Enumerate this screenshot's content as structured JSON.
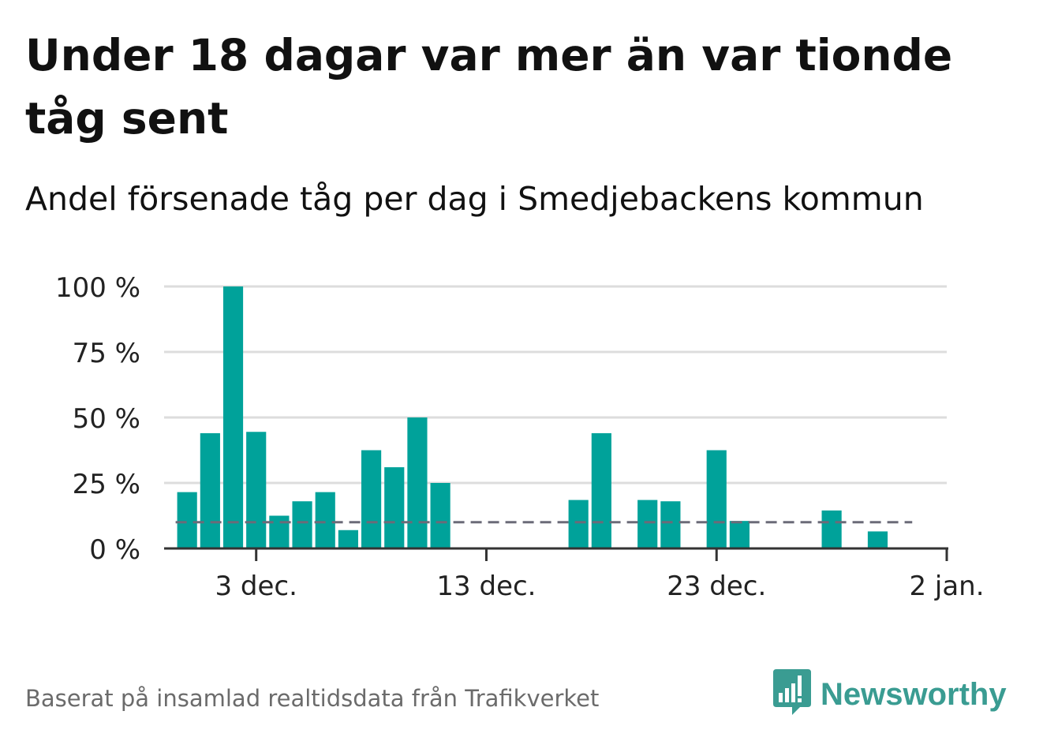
{
  "title": "Under 18 dagar var mer än var tionde tåg sent",
  "subtitle": "Andel försenade tåg per dag i Smedjebackens kommun",
  "footer": "Baserat på insamlad realtidsdata från Trafikverket",
  "brand": {
    "name": "Newsworthy",
    "icon": "newsworthy-logo-icon",
    "color": "#3a9c92"
  },
  "colors": {
    "bar": "#00a29a",
    "reference": "#6b6b78",
    "grid": "#dddddd",
    "axis": "#333333"
  },
  "chart_data": {
    "type": "bar",
    "x": [
      "2023-11-30",
      "2023-12-01",
      "2023-12-02",
      "2023-12-03",
      "2023-12-04",
      "2023-12-05",
      "2023-12-06",
      "2023-12-07",
      "2023-12-08",
      "2023-12-09",
      "2023-12-10",
      "2023-12-11",
      "2023-12-12",
      "2023-12-13",
      "2023-12-14",
      "2023-12-15",
      "2023-12-16",
      "2023-12-17",
      "2023-12-18",
      "2023-12-19",
      "2023-12-20",
      "2023-12-21",
      "2023-12-22",
      "2023-12-23",
      "2023-12-24",
      "2023-12-25",
      "2023-12-26",
      "2023-12-27",
      "2023-12-28",
      "2023-12-29",
      "2023-12-30",
      "2023-12-31"
    ],
    "values": [
      21.5,
      44,
      100,
      44.5,
      12.5,
      18,
      21.5,
      7,
      37.5,
      31,
      50,
      25,
      0,
      0,
      0,
      0,
      0,
      18.5,
      44,
      0,
      18.5,
      18,
      0,
      37.5,
      10.5,
      0,
      0,
      0,
      14.5,
      0,
      6.5,
      0
    ],
    "reference_line": {
      "value": 10,
      "from": "2023-11-30",
      "to": "2023-12-31",
      "style": "dashed"
    },
    "ylim": [
      0,
      100
    ],
    "yticks": [
      0,
      25,
      50,
      75,
      100
    ],
    "ytick_labels": [
      "0 %",
      "25 %",
      "50 %",
      "75 %",
      "100 %"
    ],
    "xticks": [
      "2023-12-03",
      "2023-12-13",
      "2023-12-23",
      "2024-01-02"
    ],
    "xtick_labels": [
      "3 dec.",
      "13 dec.",
      "23 dec.",
      "2 jan."
    ],
    "xlim": [
      "2023-11-29",
      "2024-01-02"
    ],
    "grid": true,
    "xlabel": "",
    "ylabel": ""
  }
}
